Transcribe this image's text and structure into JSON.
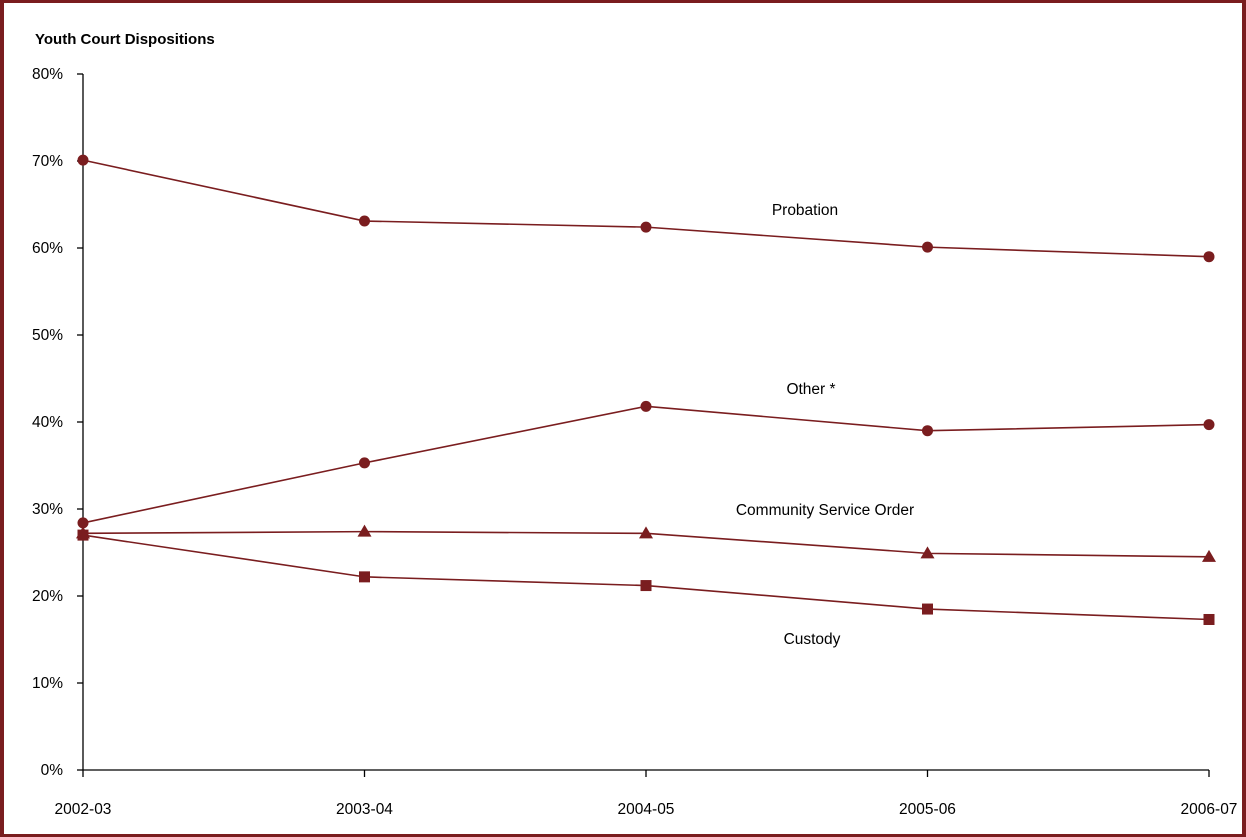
{
  "chart_data": {
    "type": "line",
    "title": "Youth Court Dispositions",
    "xlabel": "",
    "ylabel": "",
    "categories": [
      "2002-03",
      "2003-04",
      "2004-05",
      "2005-06",
      "2006-07"
    ],
    "ylim": [
      0,
      80
    ],
    "yticks": [
      0,
      10,
      20,
      30,
      40,
      50,
      60,
      70,
      80
    ],
    "ytick_labels": [
      "0%",
      "10%",
      "20%",
      "30%",
      "40%",
      "50%",
      "60%",
      "70%",
      "80%"
    ],
    "grid": false,
    "legend": "none (series labelled inline)",
    "series": [
      {
        "name": "Probation",
        "marker": "circle",
        "values": [
          70.1,
          63.1,
          62.4,
          60.1,
          59.0
        ]
      },
      {
        "name": "Other *",
        "marker": "circle",
        "values": [
          28.4,
          35.3,
          41.8,
          39.0,
          39.7
        ]
      },
      {
        "name": "Community Service Order",
        "marker": "triangle",
        "values": [
          27.2,
          27.4,
          27.2,
          24.9,
          24.5
        ]
      },
      {
        "name": "Custody",
        "marker": "square",
        "values": [
          27.0,
          22.2,
          21.2,
          18.5,
          17.3
        ]
      }
    ]
  },
  "colors": {
    "series": "#7a1d1f",
    "frame": "#7a1d1f",
    "axis": "#000000"
  }
}
